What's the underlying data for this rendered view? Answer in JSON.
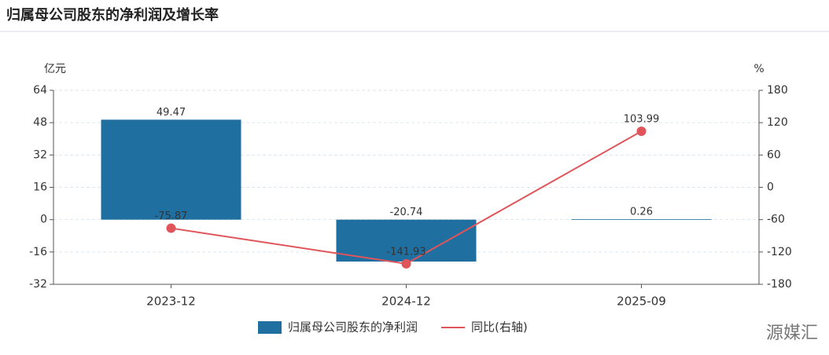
{
  "chart_data": {
    "type": "bar",
    "title": "归属母公司股东的净利润及增长率",
    "y_label": "亿元",
    "y2_label": "%",
    "categories": [
      "2023-12",
      "2024-12",
      "2025-09"
    ],
    "series": [
      {
        "name": "归属母公司股东的净利润",
        "type": "bar",
        "color": "#1f6fa0",
        "values": [
          49.47,
          -20.74,
          0.26
        ]
      },
      {
        "name": "同比(右轴)",
        "type": "line",
        "axis": "y2",
        "color": "#e0555a",
        "values": [
          -75.87,
          -141.93,
          103.99
        ]
      }
    ],
    "ylim": [
      -32,
      64
    ],
    "yticks": [
      -32,
      -16,
      0,
      16,
      32,
      48,
      64
    ],
    "y2lim": [
      -180,
      180
    ],
    "y2ticks": [
      -180,
      -120,
      -60,
      0,
      60,
      120,
      180
    ],
    "grid": true,
    "legend": "bottom",
    "watermark": "源媒汇"
  }
}
